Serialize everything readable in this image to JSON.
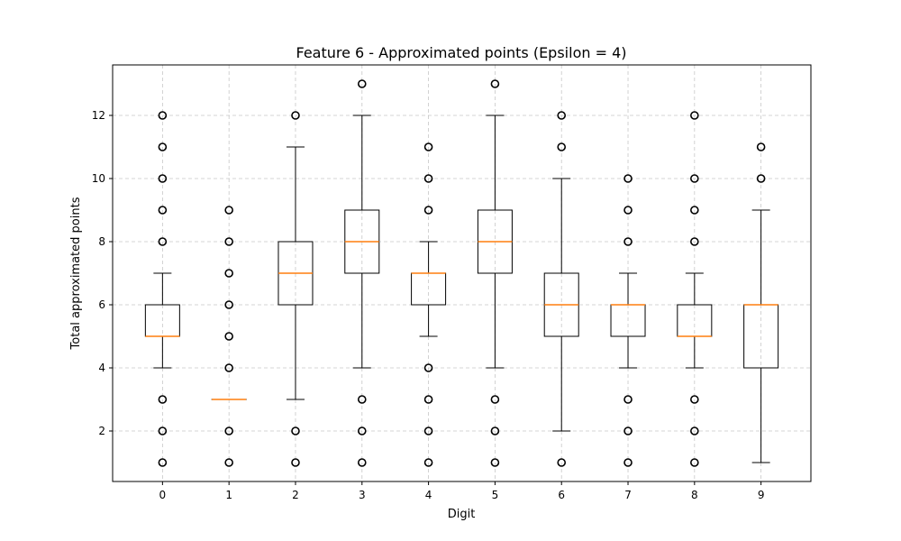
{
  "chart_data": {
    "type": "boxplot",
    "title": "Feature 6 - Approximated points (Epsilon = 4)",
    "xlabel": "Digit",
    "ylabel": "Total approximated points",
    "categories": [
      "0",
      "1",
      "2",
      "3",
      "4",
      "5",
      "6",
      "7",
      "8",
      "9"
    ],
    "ylim": [
      0.4,
      13.6
    ],
    "yticks": [
      2,
      4,
      6,
      8,
      10,
      12
    ],
    "grid": true,
    "grid_style": "dashed",
    "box_color": "#000000",
    "median_color": "#ff7f0e",
    "boxes": [
      {
        "label": "0",
        "whisker_low": 4,
        "q1": 5,
        "median": 5,
        "q3": 6,
        "whisker_high": 7,
        "outliers": [
          1,
          2,
          3,
          8,
          9,
          10,
          11,
          12
        ]
      },
      {
        "label": "1",
        "whisker_low": 3,
        "q1": 3,
        "median": 3,
        "q3": 3,
        "whisker_high": 3,
        "outliers": [
          1,
          2,
          4,
          5,
          6,
          7,
          8,
          9
        ]
      },
      {
        "label": "2",
        "whisker_low": 3,
        "q1": 6,
        "median": 7,
        "q3": 8,
        "whisker_high": 11,
        "outliers": [
          1,
          2,
          12
        ]
      },
      {
        "label": "3",
        "whisker_low": 4,
        "q1": 7,
        "median": 8,
        "q3": 9,
        "whisker_high": 12,
        "outliers": [
          1,
          2,
          3,
          13
        ]
      },
      {
        "label": "4",
        "whisker_low": 5,
        "q1": 6,
        "median": 7,
        "q3": 7,
        "whisker_high": 8,
        "outliers": [
          1,
          2,
          3,
          4,
          9,
          10,
          11
        ]
      },
      {
        "label": "5",
        "whisker_low": 4,
        "q1": 7,
        "median": 8,
        "q3": 9,
        "whisker_high": 12,
        "outliers": [
          1,
          2,
          3,
          13
        ]
      },
      {
        "label": "6",
        "whisker_low": 2,
        "q1": 5,
        "median": 6,
        "q3": 7,
        "whisker_high": 10,
        "outliers": [
          1,
          11,
          12
        ]
      },
      {
        "label": "7",
        "whisker_low": 4,
        "q1": 5,
        "median": 6,
        "q3": 6,
        "whisker_high": 7,
        "outliers": [
          1,
          2,
          3,
          8,
          9,
          10
        ]
      },
      {
        "label": "8",
        "whisker_low": 4,
        "q1": 5,
        "median": 5,
        "q3": 6,
        "whisker_high": 7,
        "outliers": [
          1,
          2,
          3,
          8,
          9,
          10,
          12
        ]
      },
      {
        "label": "9",
        "whisker_low": 1,
        "q1": 4,
        "median": 6,
        "q3": 6,
        "whisker_high": 9,
        "outliers": [
          10,
          11
        ]
      }
    ]
  }
}
